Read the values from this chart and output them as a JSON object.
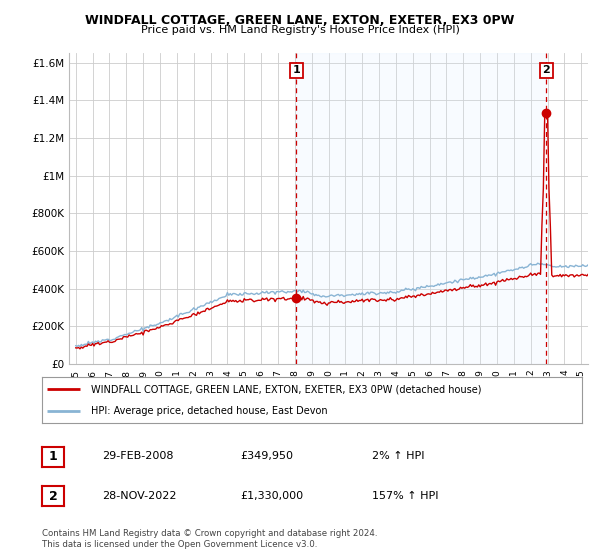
{
  "title": "WINDFALL COTTAGE, GREEN LANE, EXTON, EXETER, EX3 0PW",
  "subtitle": "Price paid vs. HM Land Registry's House Price Index (HPI)",
  "ylabel_ticks": [
    "£0",
    "£200K",
    "£400K",
    "£600K",
    "£800K",
    "£1M",
    "£1.2M",
    "£1.4M",
    "£1.6M"
  ],
  "ylabel_values": [
    0,
    200000,
    400000,
    600000,
    800000,
    1000000,
    1200000,
    1400000,
    1600000
  ],
  "ylim": [
    0,
    1650000
  ],
  "sale1_x": 2008.083,
  "sale1_price": 349950,
  "sale2_x": 2022.917,
  "sale2_price": 1330000,
  "legend_line1": "WINDFALL COTTAGE, GREEN LANE, EXTON, EXETER, EX3 0PW (detached house)",
  "legend_line2": "HPI: Average price, detached house, East Devon",
  "table_rows": [
    {
      "num": "1",
      "date": "29-FEB-2008",
      "price": "£349,950",
      "change": "2% ↑ HPI"
    },
    {
      "num": "2",
      "date": "28-NOV-2022",
      "price": "£1,330,000",
      "change": "157% ↑ HPI"
    }
  ],
  "footer": "Contains HM Land Registry data © Crown copyright and database right 2024.\nThis data is licensed under the Open Government Licence v3.0.",
  "line_color_red": "#cc0000",
  "line_color_blue": "#89b4d4",
  "shade_color": "#ddeeff",
  "dashed_line_color": "#cc0000",
  "background_color": "#ffffff",
  "grid_color": "#cccccc",
  "xlim_left": 1994.6,
  "xlim_right": 2025.4
}
